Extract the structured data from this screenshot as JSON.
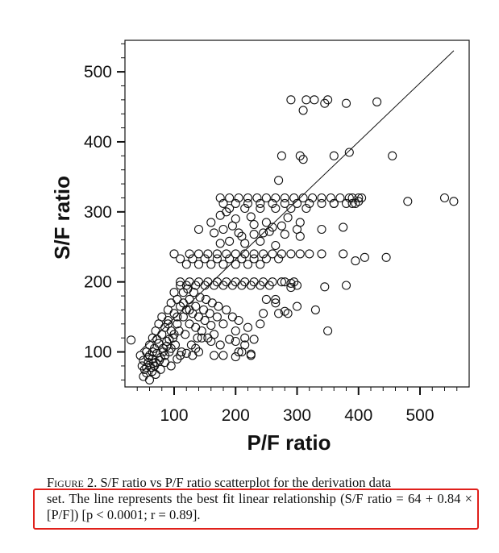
{
  "chart_data": {
    "type": "scatter",
    "xlabel": "P/F ratio",
    "ylabel": "S/F ratio",
    "xlim": [
      20,
      580
    ],
    "ylim": [
      50,
      545
    ],
    "xticks": [
      100,
      200,
      300,
      400,
      500
    ],
    "yticks": [
      100,
      200,
      300,
      400,
      500
    ],
    "grid": false,
    "fit_line": {
      "intercept": 64,
      "slope": 0.84,
      "x_range": [
        45,
        555
      ]
    },
    "points": [
      [
        30,
        117
      ],
      [
        45,
        95
      ],
      [
        48,
        80
      ],
      [
        50,
        88
      ],
      [
        52,
        75
      ],
      [
        55,
        100
      ],
      [
        55,
        70
      ],
      [
        58,
        85
      ],
      [
        60,
        95
      ],
      [
        60,
        110
      ],
      [
        62,
        78
      ],
      [
        65,
        90
      ],
      [
        65,
        120
      ],
      [
        68,
        105
      ],
      [
        70,
        85
      ],
      [
        70,
        130
      ],
      [
        72,
        98
      ],
      [
        75,
        112
      ],
      [
        75,
        140
      ],
      [
        78,
        92
      ],
      [
        80,
        125
      ],
      [
        80,
        150
      ],
      [
        82,
        105
      ],
      [
        85,
        135
      ],
      [
        85,
        95
      ],
      [
        88,
        115
      ],
      [
        90,
        145
      ],
      [
        90,
        160
      ],
      [
        92,
        100
      ],
      [
        95,
        130
      ],
      [
        95,
        170
      ],
      [
        98,
        120
      ],
      [
        100,
        155
      ],
      [
        100,
        185
      ],
      [
        102,
        110
      ],
      [
        105,
        140
      ],
      [
        105,
        175
      ],
      [
        108,
        130
      ],
      [
        110,
        165
      ],
      [
        110,
        195
      ],
      [
        112,
        100
      ],
      [
        115,
        150
      ],
      [
        115,
        185
      ],
      [
        118,
        125
      ],
      [
        120,
        160
      ],
      [
        122,
        190
      ],
      [
        125,
        140
      ],
      [
        125,
        175
      ],
      [
        128,
        110
      ],
      [
        130,
        155
      ],
      [
        132,
        185
      ],
      [
        135,
        135
      ],
      [
        135,
        165
      ],
      [
        138,
        120
      ],
      [
        140,
        150
      ],
      [
        142,
        178
      ],
      [
        145,
        130
      ],
      [
        148,
        160
      ],
      [
        150,
        145
      ],
      [
        152,
        175
      ],
      [
        155,
        120
      ],
      [
        158,
        155
      ],
      [
        160,
        138
      ],
      [
        162,
        170
      ],
      [
        165,
        125
      ],
      [
        170,
        150
      ],
      [
        172,
        165
      ],
      [
        175,
        110
      ],
      [
        180,
        140
      ],
      [
        185,
        160
      ],
      [
        190,
        118
      ],
      [
        195,
        150
      ],
      [
        200,
        130
      ],
      [
        205,
        145
      ],
      [
        210,
        100
      ],
      [
        215,
        120
      ],
      [
        220,
        135
      ],
      [
        225,
        95
      ],
      [
        230,
        118
      ],
      [
        105,
        90
      ],
      [
        110,
        95
      ],
      [
        95,
        105
      ],
      [
        88,
        108
      ],
      [
        72,
        118
      ],
      [
        65,
        100
      ],
      [
        58,
        92
      ],
      [
        120,
        98
      ],
      [
        130,
        95
      ],
      [
        140,
        100
      ],
      [
        60,
        60
      ],
      [
        50,
        65
      ],
      [
        110,
        200
      ],
      [
        125,
        200
      ],
      [
        140,
        200
      ],
      [
        155,
        200
      ],
      [
        170,
        200
      ],
      [
        185,
        200
      ],
      [
        200,
        200
      ],
      [
        215,
        200
      ],
      [
        230,
        200
      ],
      [
        245,
        200
      ],
      [
        260,
        200
      ],
      [
        275,
        200
      ],
      [
        290,
        198
      ],
      [
        120,
        195
      ],
      [
        135,
        195
      ],
      [
        150,
        195
      ],
      [
        165,
        195
      ],
      [
        180,
        195
      ],
      [
        195,
        195
      ],
      [
        210,
        195
      ],
      [
        225,
        195
      ],
      [
        240,
        195
      ],
      [
        255,
        195
      ],
      [
        110,
        233
      ],
      [
        100,
        240
      ],
      [
        125,
        240
      ],
      [
        140,
        240
      ],
      [
        155,
        240
      ],
      [
        170,
        240
      ],
      [
        185,
        240
      ],
      [
        200,
        240
      ],
      [
        215,
        240
      ],
      [
        230,
        240
      ],
      [
        245,
        240
      ],
      [
        260,
        240
      ],
      [
        275,
        240
      ],
      [
        290,
        240
      ],
      [
        305,
        240
      ],
      [
        320,
        240
      ],
      [
        130,
        233
      ],
      [
        150,
        233
      ],
      [
        170,
        233
      ],
      [
        190,
        233
      ],
      [
        210,
        233
      ],
      [
        230,
        233
      ],
      [
        250,
        233
      ],
      [
        270,
        233
      ],
      [
        120,
        225
      ],
      [
        140,
        225
      ],
      [
        160,
        225
      ],
      [
        180,
        225
      ],
      [
        200,
        225
      ],
      [
        220,
        225
      ],
      [
        240,
        225
      ],
      [
        175,
        320
      ],
      [
        190,
        320
      ],
      [
        205,
        320
      ],
      [
        220,
        320
      ],
      [
        235,
        320
      ],
      [
        250,
        320
      ],
      [
        265,
        320
      ],
      [
        280,
        320
      ],
      [
        295,
        320
      ],
      [
        310,
        320
      ],
      [
        325,
        320
      ],
      [
        340,
        320
      ],
      [
        355,
        320
      ],
      [
        370,
        320
      ],
      [
        385,
        320
      ],
      [
        400,
        320
      ],
      [
        180,
        312
      ],
      [
        200,
        312
      ],
      [
        220,
        312
      ],
      [
        240,
        312
      ],
      [
        260,
        312
      ],
      [
        280,
        312
      ],
      [
        300,
        312
      ],
      [
        320,
        312
      ],
      [
        340,
        312
      ],
      [
        360,
        312
      ],
      [
        380,
        312
      ],
      [
        390,
        312
      ],
      [
        190,
        305
      ],
      [
        215,
        305
      ],
      [
        240,
        305
      ],
      [
        265,
        305
      ],
      [
        290,
        305
      ],
      [
        315,
        305
      ],
      [
        175,
        295
      ],
      [
        200,
        290
      ],
      [
        225,
        293
      ],
      [
        250,
        285
      ],
      [
        275,
        280
      ],
      [
        300,
        275
      ],
      [
        180,
        275
      ],
      [
        205,
        270
      ],
      [
        230,
        268
      ],
      [
        255,
        272
      ],
      [
        280,
        268
      ],
      [
        190,
        258
      ],
      [
        215,
        255
      ],
      [
        240,
        258
      ],
      [
        265,
        252
      ],
      [
        165,
        270
      ],
      [
        175,
        255
      ],
      [
        160,
        285
      ],
      [
        195,
        280
      ],
      [
        210,
        265
      ],
      [
        230,
        282
      ],
      [
        245,
        270
      ],
      [
        260,
        278
      ],
      [
        285,
        292
      ],
      [
        305,
        285
      ],
      [
        140,
        275
      ],
      [
        185,
        300
      ],
      [
        305,
        265
      ],
      [
        375,
        278
      ],
      [
        340,
        275
      ],
      [
        305,
        380
      ],
      [
        310,
        375
      ],
      [
        275,
        380
      ],
      [
        360,
        380
      ],
      [
        385,
        385
      ],
      [
        455,
        380
      ],
      [
        270,
        345
      ],
      [
        340,
        240
      ],
      [
        375,
        240
      ],
      [
        395,
        230
      ],
      [
        410,
        235
      ],
      [
        445,
        235
      ],
      [
        380,
        195
      ],
      [
        345,
        193
      ],
      [
        300,
        195
      ],
      [
        290,
        192
      ],
      [
        480,
        315
      ],
      [
        540,
        320
      ],
      [
        555,
        315
      ],
      [
        400,
        315
      ],
      [
        405,
        320
      ],
      [
        390,
        320
      ],
      [
        395,
        312
      ],
      [
        360,
        312
      ],
      [
        380,
        455
      ],
      [
        310,
        445
      ],
      [
        315,
        460
      ],
      [
        328,
        460
      ],
      [
        345,
        455
      ],
      [
        350,
        460
      ],
      [
        290,
        460
      ],
      [
        430,
        457
      ],
      [
        300,
        165
      ],
      [
        280,
        158
      ],
      [
        285,
        155
      ],
      [
        330,
        160
      ],
      [
        270,
        155
      ],
      [
        265,
        175
      ],
      [
        280,
        200
      ],
      [
        295,
        200
      ],
      [
        250,
        175
      ],
      [
        265,
        170
      ],
      [
        180,
        95
      ],
      [
        205,
        100
      ],
      [
        225,
        97
      ],
      [
        200,
        93
      ],
      [
        165,
        95
      ],
      [
        350,
        130
      ],
      [
        240,
        140
      ],
      [
        245,
        155
      ],
      [
        215,
        110
      ],
      [
        200,
        115
      ],
      [
        160,
        115
      ],
      [
        145,
        120
      ],
      [
        135,
        105
      ],
      [
        95,
        80
      ],
      [
        85,
        85
      ],
      [
        78,
        75
      ],
      [
        70,
        68
      ],
      [
        68,
        80
      ],
      [
        55,
        78
      ],
      [
        90,
        140
      ],
      [
        105,
        150
      ],
      [
        115,
        170
      ],
      [
        125,
        160
      ],
      [
        100,
        125
      ],
      [
        92,
        118
      ],
      [
        82,
        100
      ],
      [
        76,
        88
      ],
      [
        66,
        84
      ],
      [
        64,
        72
      ]
    ]
  },
  "caption": {
    "label": "Figure 2.",
    "text_line1": " S/F ratio vs P/F ratio scatterplot for the derivation data",
    "text_rest": "set. The line represents the best fit linear relationship (S/F ratio = 64 + 0.84 × [P/F]) [p < 0.0001; r = 0.89]."
  },
  "colors": {
    "highlight": "#e0201b",
    "ink": "#111111"
  }
}
